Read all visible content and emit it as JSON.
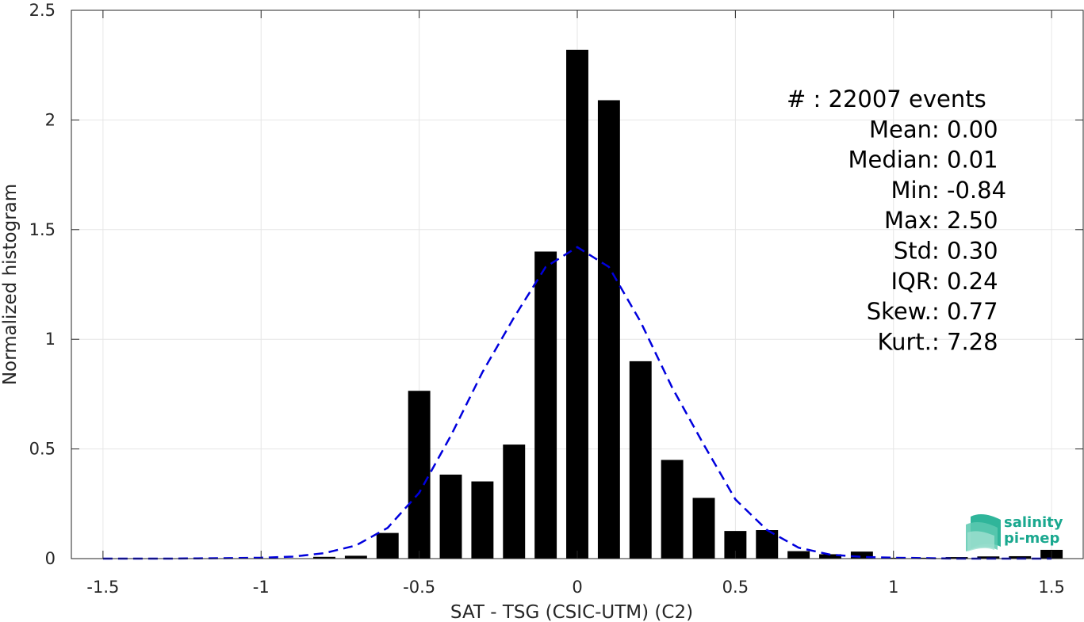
{
  "chart_data": {
    "type": "bar",
    "xlabel": "SAT - TSG (CSIC-UTM) (C2)",
    "ylabel": "Normalized histogram",
    "xlim": [
      -1.6,
      1.6
    ],
    "ylim": [
      0,
      2.5
    ],
    "xticks": [
      -1.5,
      -1,
      -0.5,
      0,
      0.5,
      1,
      1.5
    ],
    "xtick_labels": [
      "-1.5",
      "-1",
      "-0.5",
      "0",
      "0.5",
      "1",
      "1.5"
    ],
    "yticks": [
      0,
      0.5,
      1,
      1.5,
      2,
      2.5
    ],
    "ytick_labels": [
      "0",
      "0.5",
      "1",
      "1.5",
      "2",
      "2.5"
    ],
    "grid": true,
    "bar_color": "#000000",
    "curve_color": "#0000dd",
    "bars": {
      "x": [
        -1.5,
        -1.4,
        -1.3,
        -1.2,
        -1.1,
        -1.0,
        -0.9,
        -0.8,
        -0.7,
        -0.6,
        -0.5,
        -0.4,
        -0.3,
        -0.2,
        -0.1,
        0.0,
        0.1,
        0.2,
        0.3,
        0.4,
        0.5,
        0.6,
        0.7,
        0.8,
        0.9,
        1.0,
        1.1,
        1.2,
        1.3,
        1.4,
        1.5
      ],
      "values": [
        0,
        0,
        0,
        0,
        0,
        0,
        0,
        0.008,
        0.013,
        0.117,
        0.765,
        0.383,
        0.352,
        0.52,
        1.4,
        2.32,
        2.09,
        0.9,
        0.45,
        0.277,
        0.126,
        0.13,
        0.034,
        0.02,
        0.032,
        0.004,
        0.004,
        0.007,
        0.01,
        0.011,
        0.04
      ]
    },
    "fit_curve": {
      "style": "dashed",
      "x": [
        -1.5,
        -1.4,
        -1.3,
        -1.2,
        -1.1,
        -1.0,
        -0.9,
        -0.8,
        -0.7,
        -0.6,
        -0.5,
        -0.4,
        -0.3,
        -0.2,
        -0.1,
        0.0,
        0.1,
        0.2,
        0.3,
        0.4,
        0.5,
        0.6,
        0.7,
        0.8,
        0.9,
        1.0,
        1.1,
        1.2,
        1.3,
        1.4,
        1.5
      ],
      "y": [
        0.0,
        0.0,
        0.0,
        0.001,
        0.002,
        0.004,
        0.009,
        0.025,
        0.06,
        0.14,
        0.3,
        0.56,
        0.85,
        1.1,
        1.33,
        1.42,
        1.33,
        1.08,
        0.78,
        0.52,
        0.27,
        0.13,
        0.05,
        0.018,
        0.008,
        0.004,
        0.002,
        0.0,
        0.0,
        0.0,
        0.0
      ]
    },
    "annotations": [
      {
        "label": "#  ",
        "sep": ": ",
        "value": "22007 events"
      },
      {
        "label": "Mean ",
        "sep": ": ",
        "value": "0.00"
      },
      {
        "label": "Median ",
        "sep": ": ",
        "value": "0.01"
      },
      {
        "label": "Min ",
        "sep": ": ",
        "value": "-0.84"
      },
      {
        "label": "Max ",
        "sep": ": ",
        "value": "2.50"
      },
      {
        "label": "Std ",
        "sep": ": ",
        "value": "0.30"
      },
      {
        "label": "IQR ",
        "sep": ": ",
        "value": "0.24"
      },
      {
        "label": "Skew. ",
        "sep": ": ",
        "value": "0.77"
      },
      {
        "label": "Kurt. ",
        "sep": ": ",
        "value": "7.28"
      }
    ]
  },
  "logo": {
    "line1": "salinity",
    "line2": "pi-mep",
    "color": "#1aa88f"
  }
}
